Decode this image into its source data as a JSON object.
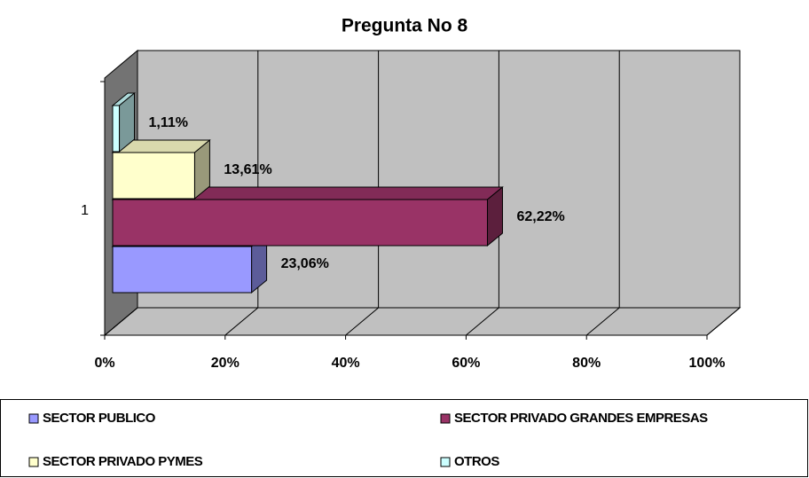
{
  "chart_data": {
    "type": "bar3d_horizontal",
    "title": "Pregunta No 8",
    "categories": [
      "1"
    ],
    "series": [
      {
        "name": "SECTOR PUBLICO",
        "color": "#9999ff",
        "values": [
          23.06
        ],
        "value_labels": [
          "23,06%"
        ]
      },
      {
        "name": "SECTOR PRIVADO GRANDES EMPRESAS",
        "color": "#993366",
        "values": [
          62.22
        ],
        "value_labels": [
          "62,22%"
        ]
      },
      {
        "name": "SECTOR PRIVADO PYMES",
        "color": "#ffffcc",
        "values": [
          13.61
        ],
        "value_labels": [
          "13,61%"
        ]
      },
      {
        "name": "OTROS",
        "color": "#ccffff",
        "values": [
          1.11
        ],
        "value_labels": [
          "1,11%"
        ]
      }
    ],
    "xlim": [
      0,
      100
    ],
    "xticks": [
      {
        "value": 0,
        "label": "0%"
      },
      {
        "value": 20,
        "label": "20%"
      },
      {
        "value": 40,
        "label": "40%"
      },
      {
        "value": 60,
        "label": "60%"
      },
      {
        "value": 80,
        "label": "80%"
      },
      {
        "value": 100,
        "label": "100%"
      }
    ],
    "grid": true,
    "wall_color": "#c0c0c0",
    "legend": "bottom"
  }
}
